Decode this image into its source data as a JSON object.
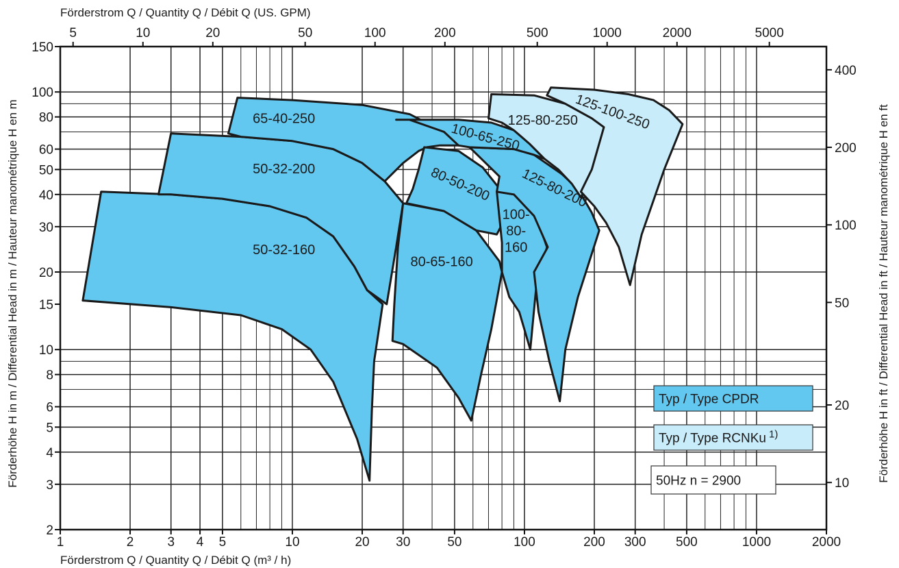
{
  "chart_data": {
    "type": "area",
    "title": "",
    "x_bottom": {
      "label": "Förderstrom Q  /  Quantity Q  /  Débit Q (m³ / h)",
      "scale": "log",
      "range": [
        1,
        2000
      ],
      "ticks": [
        {
          "v": 1,
          "t": "1"
        },
        {
          "v": 2,
          "t": "2"
        },
        {
          "v": 3,
          "t": "3"
        },
        {
          "v": 4,
          "t": "4"
        },
        {
          "v": 5,
          "t": "5"
        },
        {
          "v": 10,
          "t": "10"
        },
        {
          "v": 20,
          "t": "20"
        },
        {
          "v": 30,
          "t": "30"
        },
        {
          "v": 50,
          "t": "50"
        },
        {
          "v": 100,
          "t": "100"
        },
        {
          "v": 200,
          "t": "200"
        },
        {
          "v": 300,
          "t": "300"
        },
        {
          "v": 500,
          "t": "500"
        },
        {
          "v": 1000,
          "t": "1000"
        },
        {
          "v": 2000,
          "t": "2000"
        }
      ]
    },
    "x_top": {
      "label": "Förderstrom Q  /  Quantity Q  /  Débit Q (US. GPM)",
      "scale": "log",
      "ticks": [
        {
          "v": 5,
          "t": "5"
        },
        {
          "v": 10,
          "t": "10"
        },
        {
          "v": 20,
          "t": "20"
        },
        {
          "v": 50,
          "t": "50"
        },
        {
          "v": 100,
          "t": "100"
        },
        {
          "v": 200,
          "t": "200"
        },
        {
          "v": 500,
          "t": "500"
        },
        {
          "v": 1000,
          "t": "1000"
        },
        {
          "v": 2000,
          "t": "2000"
        },
        {
          "v": 5000,
          "t": "5000"
        }
      ]
    },
    "y_left": {
      "label": "Förderhöhe H in m / Differential Head in m / Hauteur manométrique H en m",
      "scale": "log",
      "range": [
        2,
        150
      ],
      "ticks": [
        {
          "v": 2,
          "t": "2"
        },
        {
          "v": 3,
          "t": "3"
        },
        {
          "v": 4,
          "t": "4"
        },
        {
          "v": 5,
          "t": "5"
        },
        {
          "v": 6,
          "t": "6"
        },
        {
          "v": 8,
          "t": "8"
        },
        {
          "v": 10,
          "t": "10"
        },
        {
          "v": 15,
          "t": "15"
        },
        {
          "v": 20,
          "t": "20"
        },
        {
          "v": 30,
          "t": "30"
        },
        {
          "v": 40,
          "t": "40"
        },
        {
          "v": 50,
          "t": "50"
        },
        {
          "v": 60,
          "t": "60"
        },
        {
          "v": 80,
          "t": "80"
        },
        {
          "v": 100,
          "t": "100"
        },
        {
          "v": 150,
          "t": "150"
        }
      ]
    },
    "y_right": {
      "label": "Förderhöhe H in ft / Differential Head in ft / Hauteur manométrique H en ft",
      "scale": "log",
      "ticks": [
        {
          "v": 10,
          "t": "10"
        },
        {
          "v": 20,
          "t": "20"
        },
        {
          "v": 50,
          "t": "50"
        },
        {
          "v": 100,
          "t": "100"
        },
        {
          "v": 200,
          "t": "200"
        },
        {
          "v": 400,
          "t": "400"
        }
      ]
    },
    "grid": true,
    "legend": {
      "placement": "bottom-right",
      "items": [
        {
          "text": "Typ / Type CPDR",
          "sup": "",
          "color": "#62c8f0"
        },
        {
          "text": "Typ / Type RCNKu",
          "sup": "1)",
          "color": "#c8ecfa"
        },
        {
          "text": "50Hz  n = 2900",
          "sup": "",
          "color": "#ffffff"
        }
      ]
    },
    "colors": {
      "CPDR": "#62c8f0",
      "RCNKu": "#c8ecfa",
      "outline": "#1a1a1a"
    },
    "series": [
      {
        "name": "50-32-160",
        "type": "CPDR",
        "label_lines": [
          "50-32-160"
        ],
        "label_at": [
          9.2,
          24.5
        ],
        "label_angle": 0,
        "points": [
          [
            1.25,
            15.5
          ],
          [
            1.5,
            41
          ],
          [
            3,
            40
          ],
          [
            5,
            38.5
          ],
          [
            8,
            36
          ],
          [
            11.5,
            32.5
          ],
          [
            15,
            27.5
          ],
          [
            18.5,
            21
          ],
          [
            21,
            17
          ],
          [
            24.5,
            15
          ],
          [
            22.5,
            9
          ],
          [
            22,
            5.8
          ],
          [
            21.5,
            3.1
          ],
          [
            19,
            4.5
          ],
          [
            15,
            7.5
          ],
          [
            12,
            10
          ],
          [
            9,
            12
          ],
          [
            6,
            13.6
          ],
          [
            3,
            14.6
          ]
        ]
      },
      {
        "name": "50-32-200",
        "type": "CPDR",
        "label_lines": [
          "50-32-200"
        ],
        "label_at": [
          9.2,
          50.5
        ],
        "label_angle": 0,
        "points": [
          [
            2.65,
            40
          ],
          [
            3,
            69
          ],
          [
            6,
            67
          ],
          [
            10,
            64.5
          ],
          [
            15,
            60
          ],
          [
            20,
            53
          ],
          [
            25,
            45
          ],
          [
            30,
            37
          ],
          [
            28,
            25
          ],
          [
            25.5,
            15
          ],
          [
            21,
            17
          ],
          [
            18.5,
            21
          ],
          [
            15,
            27.5
          ],
          [
            11.5,
            32.5
          ],
          [
            8,
            36
          ],
          [
            5,
            38.5
          ],
          [
            3,
            40
          ]
        ]
      },
      {
        "name": "65-40-250",
        "type": "CPDR",
        "label_lines": [
          "65-40-250"
        ],
        "label_at": [
          9.2,
          79
        ],
        "label_angle": 0,
        "points": [
          [
            5.3,
            69
          ],
          [
            5.8,
            95
          ],
          [
            10,
            93
          ],
          [
            20,
            89
          ],
          [
            32,
            82
          ],
          [
            45,
            70
          ],
          [
            55,
            62
          ],
          [
            43,
            62
          ],
          [
            38,
            61
          ],
          [
            35,
            59
          ],
          [
            30,
            53
          ],
          [
            25,
            45
          ],
          [
            20,
            53
          ],
          [
            15,
            60
          ],
          [
            10,
            64.5
          ],
          [
            6,
            67
          ],
          [
            5.3,
            69
          ]
        ]
      },
      {
        "name": "80-65-160",
        "type": "CPDR",
        "label_lines": [
          "80-65-160"
        ],
        "label_at": [
          44,
          22
        ],
        "label_angle": 0,
        "points": [
          [
            30,
            37
          ],
          [
            45,
            34.5
          ],
          [
            62,
            29
          ],
          [
            78,
            22
          ],
          [
            80,
            20
          ],
          [
            72,
            12
          ],
          [
            65,
            8
          ],
          [
            59,
            5.3
          ],
          [
            52,
            6.5
          ],
          [
            42,
            8.5
          ],
          [
            30,
            10.5
          ],
          [
            27,
            10.8
          ],
          [
            27.5,
            15
          ],
          [
            28.5,
            25
          ]
        ]
      },
      {
        "name": "80-50-200",
        "type": "CPDR",
        "label_lines": [
          "80-50-200"
        ],
        "label_at": [
          53,
          44
        ],
        "label_angle": 24,
        "points": [
          [
            35,
            50
          ],
          [
            37,
            61
          ],
          [
            52,
            59
          ],
          [
            66,
            51
          ],
          [
            80,
            41
          ],
          [
            88,
            34.5
          ],
          [
            82,
            32
          ],
          [
            76,
            28
          ],
          [
            62,
            29
          ],
          [
            45,
            34.5
          ],
          [
            31,
            37
          ],
          [
            33,
            42
          ]
        ]
      },
      {
        "name": "100-80-160",
        "type": "CPDR",
        "label_lines": [
          "100-",
          "80-",
          "160"
        ],
        "label_at": [
          92,
          29
        ],
        "label_angle": 0,
        "points": [
          [
            76,
            41
          ],
          [
            90,
            40
          ],
          [
            105,
            36
          ],
          [
            115,
            31
          ],
          [
            125,
            25
          ],
          [
            112,
            17
          ],
          [
            106,
            10
          ],
          [
            95,
            14
          ],
          [
            86,
            16
          ],
          [
            80,
            20
          ],
          [
            80,
            26
          ]
        ]
      },
      {
        "name": "125-80-200",
        "type": "CPDR",
        "label_lines": [
          "125-80-200"
        ],
        "label_at": [
          135,
          42.5
        ],
        "label_angle": 26,
        "points": [
          [
            58,
            61
          ],
          [
            90,
            60
          ],
          [
            110,
            57
          ],
          [
            145,
            48
          ],
          [
            170,
            42
          ],
          [
            195,
            34
          ],
          [
            210,
            29
          ],
          [
            170,
            16
          ],
          [
            150,
            10
          ],
          [
            142,
            6.3
          ],
          [
            128,
            9
          ],
          [
            115,
            14
          ],
          [
            110,
            20
          ],
          [
            126,
            25
          ],
          [
            110,
            33
          ],
          [
            90,
            40
          ],
          [
            76,
            41
          ],
          [
            78,
            47
          ]
        ]
      },
      {
        "name": "100-65-250",
        "type": "CPDR",
        "label_lines": [
          "100-65-250"
        ],
        "label_at": [
          68,
          67
        ],
        "label_angle": 15,
        "points": [
          [
            28,
            78
          ],
          [
            52,
            78
          ],
          [
            72,
            76
          ],
          [
            90,
            71
          ],
          [
            105,
            63
          ],
          [
            122,
            55
          ],
          [
            110,
            57
          ],
          [
            90,
            60
          ],
          [
            58,
            61
          ],
          [
            52,
            62
          ],
          [
            45,
            70
          ],
          [
            32,
            78
          ]
        ]
      },
      {
        "name": "125-80-250",
        "type": "RCNKu",
        "label_lines": [
          "125-80-250"
        ],
        "label_at": [
          120,
          78
        ],
        "label_angle": 0,
        "points": [
          [
            70,
            79
          ],
          [
            72,
            98
          ],
          [
            110,
            97
          ],
          [
            150,
            90
          ],
          [
            195,
            79
          ],
          [
            220,
            73
          ],
          [
            200,
            50
          ],
          [
            175,
            39
          ],
          [
            160,
            44
          ],
          [
            140,
            50
          ],
          [
            122,
            55
          ],
          [
            105,
            63
          ],
          [
            90,
            71
          ],
          [
            80,
            76
          ]
        ]
      },
      {
        "name": "125-100-250",
        "type": "RCNKu",
        "label_lines": [
          "125-100-250"
        ],
        "label_at": [
          240,
          84
        ],
        "label_angle": 20,
        "points": [
          [
            125,
            97
          ],
          [
            130,
            104
          ],
          [
            200,
            102
          ],
          [
            280,
            98
          ],
          [
            360,
            93
          ],
          [
            420,
            85
          ],
          [
            480,
            75
          ],
          [
            400,
            50
          ],
          [
            320,
            28
          ],
          [
            285,
            17.8
          ],
          [
            255,
            25
          ],
          [
            225,
            31
          ],
          [
            200,
            36
          ],
          [
            175,
            41
          ],
          [
            195,
            50
          ],
          [
            220,
            73
          ],
          [
            195,
            79
          ],
          [
            150,
            90
          ]
        ]
      }
    ]
  }
}
